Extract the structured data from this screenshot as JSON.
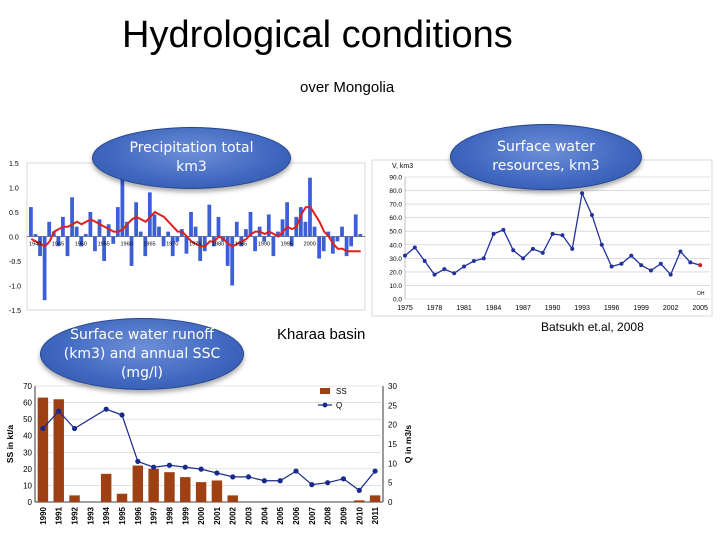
{
  "slide": {
    "title": "Hydrological conditions",
    "subtitle": "over Mongolia",
    "labels": {
      "precip": "Precipitation total km3",
      "surface": "Surface water resources, km3",
      "runoff": "Surface water runoff (km3) and annual SSC (mg/l)",
      "kharaa": "Kharaa basin",
      "citation": "Batsukh et.al, 2008"
    }
  },
  "chart_data": [
    {
      "type": "bar",
      "title": "",
      "ylim": [
        -1.5,
        1.5
      ],
      "yticks": [
        "1.5",
        "1.0",
        "0.5",
        "0.0",
        "-0.5",
        "-1.0",
        "-1.5"
      ],
      "xticks": [
        "1940",
        "1945",
        "1950",
        "1955",
        "1960",
        "1965",
        "1970",
        "1975",
        "1980",
        "1985",
        "1990",
        "1995",
        "2000"
      ],
      "x_start": 1940,
      "bar_values": [
        0.6,
        0.05,
        -0.4,
        -1.3,
        0.3,
        0.1,
        -0.2,
        0.4,
        -0.4,
        0.8,
        0.2,
        -0.2,
        0.05,
        0.5,
        -0.3,
        0.35,
        -0.5,
        0.25,
        -0.15,
        0.6,
        1.3,
        0.3,
        -0.6,
        0.7,
        0.1,
        -0.4,
        0.9,
        0.45,
        0.2,
        -0.2,
        0.1,
        -0.4,
        -0.1,
        0.15,
        -0.35,
        0.5,
        0.2,
        -0.5,
        -0.3,
        0.65,
        -0.2,
        0.4,
        -0.1,
        -0.6,
        -1.0,
        0.3,
        -0.2,
        0.15,
        0.5,
        -0.3,
        0.2,
        -0.1,
        0.45,
        -0.4,
        0.1,
        0.35,
        0.7,
        -0.2,
        0.4,
        0.6,
        0.3,
        1.2,
        0.2,
        -0.45,
        -0.3,
        0.1,
        -0.35,
        -0.1,
        0.2,
        -0.4,
        -0.2,
        0.45,
        0.05
      ],
      "smooth_values": [
        -0.05,
        -0.1,
        -0.15,
        -0.2,
        -0.1,
        0.1,
        0.15,
        0.2,
        0.2,
        0.25,
        0.3,
        0.25,
        0.3,
        0.35,
        0.3,
        0.25,
        0.2,
        0.15,
        0.1,
        0.1,
        0.15,
        0.25,
        0.35,
        0.4,
        0.35,
        0.3,
        0.4,
        0.5,
        0.45,
        0.4,
        0.3,
        0.2,
        0.1,
        0.1,
        0.0,
        -0.1,
        -0.15,
        -0.2,
        -0.2,
        -0.1,
        -0.1,
        0.0,
        -0.05,
        -0.15,
        -0.2,
        -0.15,
        -0.1,
        -0.05,
        0.05,
        0.1,
        0.1,
        0.05,
        0.1,
        0.05,
        0.0,
        0.1,
        0.2,
        0.15,
        0.2,
        0.45,
        0.6,
        0.6,
        0.45,
        0.3,
        0.1,
        0.0,
        -0.15,
        -0.25,
        -0.25,
        -0.3,
        -0.3,
        -0.3,
        -0.3
      ],
      "bar_color": "#3d5fd6",
      "line_color": "#e0201c"
    },
    {
      "type": "line",
      "ylabel": "V, km3",
      "ylim": [
        0,
        90
      ],
      "yticks": [
        "90.0",
        "80.0",
        "70.0",
        "60.0",
        "50.0",
        "40.0",
        "30.0",
        "20.0",
        "10.0",
        "0.0"
      ],
      "xticks": [
        "1975",
        "1978",
        "1981",
        "1984",
        "1987",
        "1990",
        "1993",
        "1996",
        "1999",
        "2002",
        "2005"
      ],
      "x": [
        1975,
        1976,
        1977,
        1978,
        1979,
        1980,
        1981,
        1982,
        1983,
        1984,
        1985,
        1986,
        1987,
        1988,
        1989,
        1990,
        1991,
        1992,
        1993,
        1994,
        1995,
        1996,
        1997,
        1998,
        1999,
        2000,
        2001,
        2002,
        2003,
        2004,
        2005
      ],
      "y": [
        32,
        38,
        28,
        18,
        22,
        19,
        24,
        28,
        30,
        48,
        51,
        36,
        30,
        37,
        34,
        48,
        47,
        37,
        78,
        62,
        40,
        24,
        26,
        32,
        25,
        21,
        26,
        18,
        35,
        27,
        25
      ],
      "line_color": "#23319a",
      "last_point_color": "#d02020",
      "corner_text": "OH"
    },
    {
      "type": "bar+line",
      "ylabel": "SS in kt/a",
      "y2label": "Q in m3/s",
      "ylim": [
        0,
        70
      ],
      "y2lim": [
        0,
        30
      ],
      "yticks": [
        "70",
        "60",
        "50",
        "40",
        "30",
        "20",
        "10",
        "0"
      ],
      "y2ticks": [
        "30",
        "25",
        "20",
        "15",
        "10",
        "5",
        "0"
      ],
      "categories": [
        "1990",
        "1991",
        "1992",
        "1993",
        "1994",
        "1995",
        "1996",
        "1997",
        "1998",
        "1999",
        "2000",
        "2001",
        "2002",
        "2003",
        "2004",
        "2005",
        "2006",
        "2007",
        "2008",
        "2009",
        "2010",
        "2011"
      ],
      "series": [
        {
          "name": "SS",
          "type": "bar",
          "values": [
            63,
            62,
            4,
            null,
            17,
            5,
            22,
            20,
            18,
            15,
            12,
            13,
            4,
            null,
            null,
            null,
            null,
            null,
            null,
            null,
            1,
            4
          ]
        },
        {
          "name": "Q",
          "type": "line",
          "values": [
            19,
            23.5,
            19,
            null,
            24,
            22.5,
            10.5,
            9,
            9.5,
            9,
            8.5,
            7.5,
            6.5,
            6.5,
            5.5,
            5.5,
            8,
            4.5,
            5,
            6,
            3,
            8
          ]
        }
      ],
      "bar_color": "#9e3f14",
      "line_color": "#1a2a8a"
    }
  ]
}
